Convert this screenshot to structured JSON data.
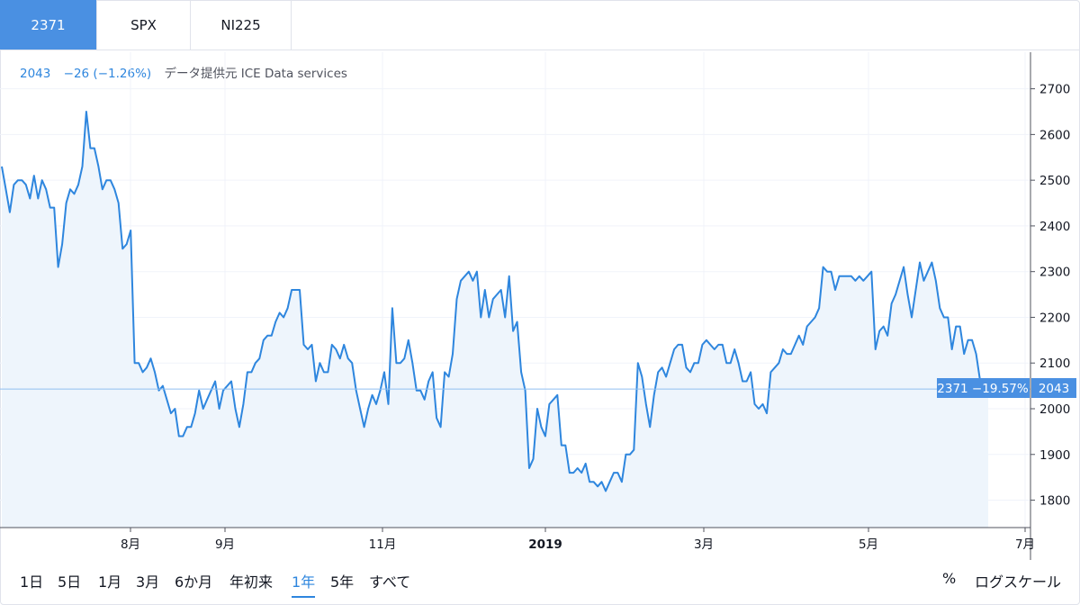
{
  "tabs": [
    {
      "label": "2371",
      "active": true
    },
    {
      "label": "SPX",
      "active": false
    },
    {
      "label": "NI225",
      "active": false
    }
  ],
  "legend": {
    "value": "2043",
    "change": "−26 (−1.26%)",
    "source": "データ提供元 ICE Data services"
  },
  "price_tag": {
    "symbol_change": "2371 −19.57%",
    "price": "2043"
  },
  "ranges": [
    {
      "label": "1日",
      "active": false
    },
    {
      "label": "5日",
      "active": false
    },
    {
      "label": "1月",
      "active": false
    },
    {
      "label": "3月",
      "active": false
    },
    {
      "label": "6か月",
      "active": false
    },
    {
      "label": "年初来",
      "active": false
    },
    {
      "label": "1年",
      "active": true
    },
    {
      "label": "5年",
      "active": false
    },
    {
      "label": "すべて",
      "active": false
    }
  ],
  "controls": {
    "percent": "%",
    "log_scale": "ログスケール"
  },
  "colors": {
    "line": "#2e86de",
    "fill": "#eef5fc",
    "accent": "#4a90e2"
  },
  "chart_data": {
    "type": "area",
    "ylim": [
      1740,
      2780
    ],
    "y_ticks": [
      1800,
      1900,
      2000,
      2100,
      2200,
      2300,
      2400,
      2500,
      2600,
      2700
    ],
    "x_labels": [
      "8月",
      "9月",
      "11月",
      "2019",
      "3月",
      "5月",
      "7月"
    ],
    "grid": true,
    "last_value": 2043,
    "values": [
      2530,
      2480,
      2430,
      2490,
      2500,
      2500,
      2490,
      2460,
      2510,
      2460,
      2500,
      2480,
      2440,
      2440,
      2310,
      2360,
      2450,
      2480,
      2470,
      2490,
      2530,
      2650,
      2570,
      2570,
      2530,
      2480,
      2500,
      2500,
      2480,
      2450,
      2350,
      2360,
      2390,
      2100,
      2100,
      2080,
      2090,
      2110,
      2080,
      2040,
      2050,
      2020,
      1990,
      2000,
      1940,
      1940,
      1960,
      1960,
      1990,
      2040,
      2000,
      2020,
      2040,
      2060,
      2000,
      2040,
      2050,
      2060,
      2000,
      1960,
      2010,
      2080,
      2080,
      2100,
      2110,
      2150,
      2160,
      2160,
      2190,
      2210,
      2200,
      2220,
      2260,
      2260,
      2260,
      2140,
      2130,
      2140,
      2060,
      2100,
      2080,
      2080,
      2140,
      2130,
      2110,
      2140,
      2110,
      2100,
      2040,
      2000,
      1960,
      2000,
      2030,
      2010,
      2040,
      2080,
      2010,
      2220,
      2100,
      2100,
      2110,
      2150,
      2100,
      2040,
      2040,
      2020,
      2060,
      2080,
      1980,
      1960,
      2080,
      2070,
      2120,
      2240,
      2280,
      2290,
      2300,
      2280,
      2300,
      2200,
      2260,
      2200,
      2240,
      2250,
      2260,
      2200,
      2290,
      2170,
      2190,
      2080,
      2040,
      1870,
      1890,
      2000,
      1960,
      1940,
      2010,
      2020,
      2030,
      1920,
      1920,
      1860,
      1860,
      1870,
      1860,
      1880,
      1840,
      1840,
      1830,
      1840,
      1820,
      1840,
      1860,
      1860,
      1840,
      1900,
      1900,
      1910,
      2100,
      2070,
      2010,
      1960,
      2030,
      2080,
      2090,
      2070,
      2100,
      2130,
      2140,
      2140,
      2090,
      2080,
      2100,
      2100,
      2140,
      2150,
      2140,
      2130,
      2140,
      2140,
      2100,
      2100,
      2130,
      2100,
      2060,
      2060,
      2080,
      2010,
      2000,
      2010,
      1990,
      2080,
      2090,
      2100,
      2130,
      2120,
      2120,
      2140,
      2160,
      2140,
      2180,
      2190,
      2200,
      2220,
      2310,
      2300,
      2300,
      2260,
      2290,
      2290,
      2290,
      2290,
      2280,
      2290,
      2280,
      2290,
      2300,
      2130,
      2170,
      2180,
      2160,
      2230,
      2250,
      2280,
      2310,
      2250,
      2200,
      2260,
      2320,
      2280,
      2300,
      2320,
      2280,
      2220,
      2200,
      2200,
      2130,
      2180,
      2180,
      2120,
      2150,
      2150,
      2120,
      2060,
      2060,
      2060
    ]
  }
}
